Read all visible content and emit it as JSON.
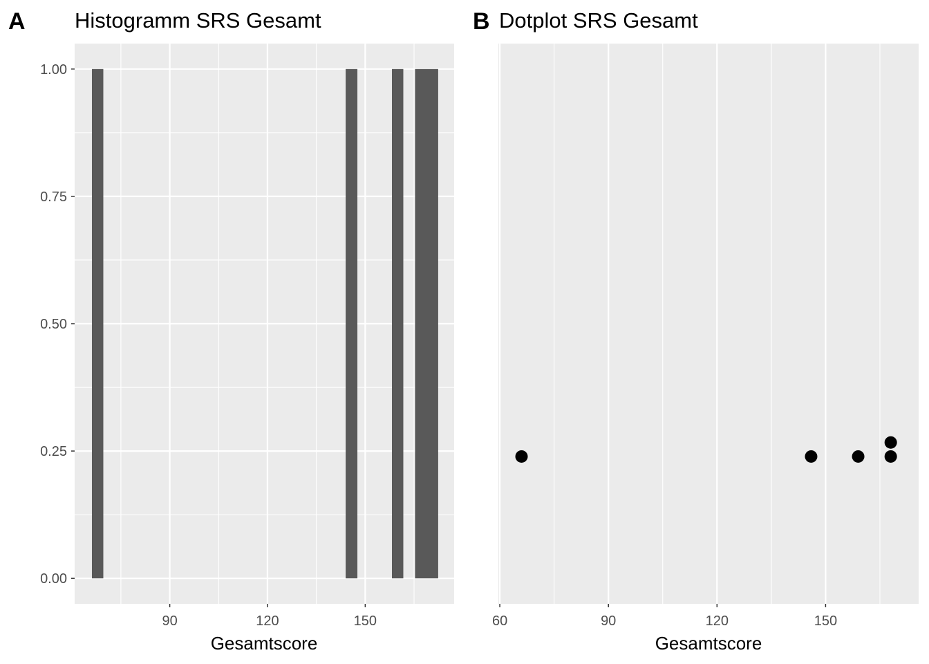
{
  "chart_data": [
    {
      "panel": "A",
      "type": "bar",
      "title": "Histogramm SRS Gesamt",
      "xlabel": "Gesamtscore",
      "ylabel": "",
      "xlim": [
        60.8,
        177.3
      ],
      "ylim": [
        -0.05,
        1.05
      ],
      "xticks": [
        90,
        120,
        150
      ],
      "xtick_labels": [
        "90",
        "120",
        "150"
      ],
      "yticks": [
        0,
        0.25,
        0.5,
        0.75,
        1
      ],
      "ytick_labels": [
        "0.00",
        "0.25",
        "0.50",
        "0.75",
        "1.00"
      ],
      "bar_color": "#595959",
      "bins": [
        {
          "x0": 66.1,
          "x1": 69.6,
          "value": 1
        },
        {
          "x0": 144.0,
          "x1": 147.6,
          "value": 1
        },
        {
          "x0": 158.2,
          "x1": 161.7,
          "value": 1
        },
        {
          "x0": 165.3,
          "x1": 172.4,
          "value": 1
        }
      ]
    },
    {
      "panel": "B",
      "type": "scatter",
      "title": "Dotplot SRS Gesamt",
      "xlabel": "Gesamtscore",
      "ylabel": "",
      "xlim": [
        59.6,
        175.7
      ],
      "ylim": [
        0,
        1
      ],
      "xticks": [
        60,
        90,
        120,
        150
      ],
      "xtick_labels": [
        "60",
        "90",
        "120",
        "150"
      ],
      "point_color": "#000000",
      "points": [
        {
          "x": 66,
          "y": 0.263
        },
        {
          "x": 146,
          "y": 0.263
        },
        {
          "x": 159,
          "y": 0.263
        },
        {
          "x": 168,
          "y": 0.263
        },
        {
          "x": 168,
          "y": 0.288
        }
      ]
    }
  ],
  "colors": {
    "panel_background": "#ebebeb",
    "gridline": "#ffffff",
    "tick_text": "#4d4d4d"
  }
}
